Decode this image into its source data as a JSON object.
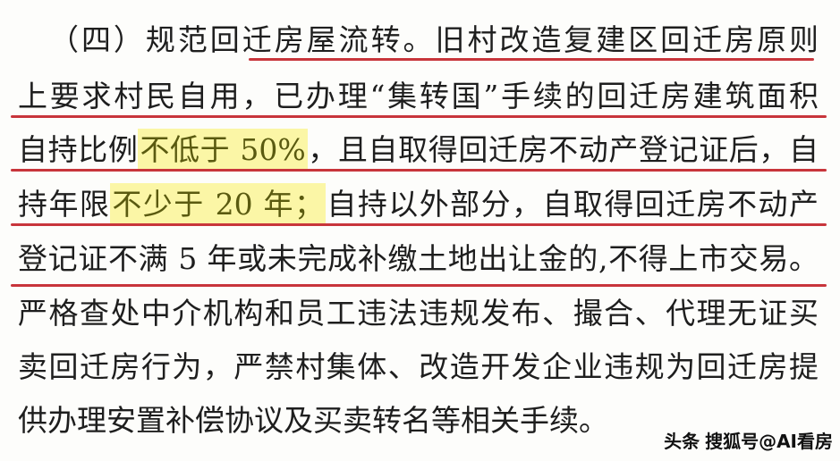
{
  "document": {
    "lines": [
      {
        "a": "（四）规范回迁房屋流转。",
        "b": "旧村改造复建区回迁房原则"
      },
      {
        "a": "上要求村民自用，已办理“集转国”手续的回迁房建筑面积"
      },
      {
        "a": "自持比例",
        "h": "不低于 50%",
        "b": "，且自取得回迁房不动产登记证后，自"
      },
      {
        "a": "持年限",
        "h": "不少于 20 年；",
        "b": "自持以外部分，自取得回迁房不动产"
      },
      {
        "a": "登记证不满 5 年或未完成补缴土地出让金的,不得上市交易。"
      },
      {
        "a": "严格查处中介机构和员工违法违规发布、撮合、代理无证买"
      },
      {
        "a": "卖回迁房行为，严禁村集体、改造开发企业违规为回迁房提"
      },
      {
        "a": "供办理安置补偿协议及买卖转名等相关手续。"
      }
    ],
    "watermark_1": "头条",
    "watermark_2": "搜狐号@AI看房"
  },
  "colors": {
    "underline": "#c8353b",
    "highlight": "#fbf6a6"
  }
}
